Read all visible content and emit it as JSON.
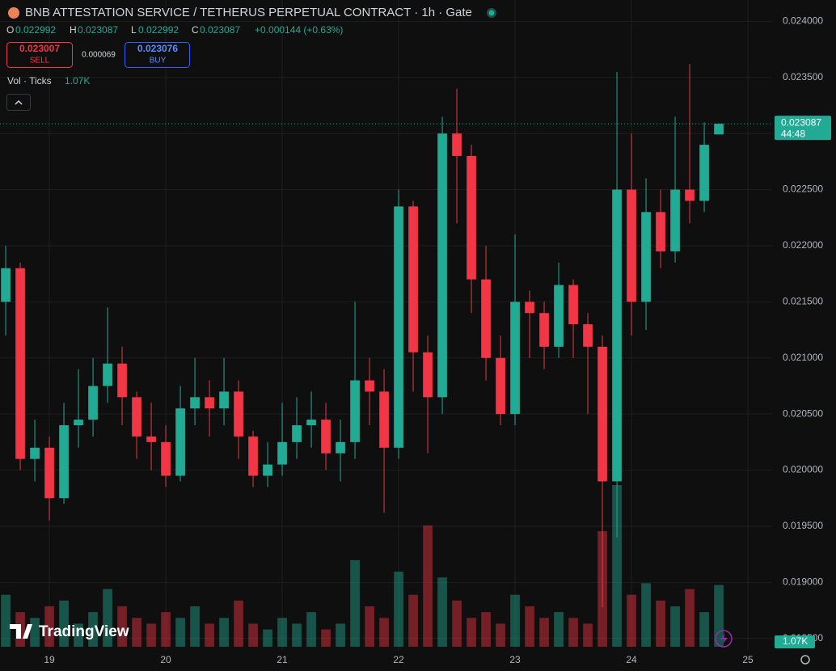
{
  "header": {
    "symbol": "BNB ATTESTATION SERVICE / TETHERUS PERPETUAL CONTRACT · 1h · Gate",
    "o_label": "O",
    "o": 0.022992,
    "h_label": "H",
    "h": 0.023087,
    "l_label": "L",
    "l": 0.022992,
    "c_label": "C",
    "c": 0.023087,
    "change": "+0.000144 (+0.63%)",
    "sell": 0.023007,
    "sell_label": "SELL",
    "spread": 6.9e-05,
    "buy": 0.023076,
    "buy_label": "BUY",
    "indicator": "Vol · Ticks",
    "countdown": "44:48",
    "brand": "TradingView"
  },
  "chart_data": {
    "type": "candlestick",
    "x": [
      18.625,
      18.75,
      18.875,
      19,
      19.125,
      19.25,
      19.375,
      19.5,
      19.625,
      19.75,
      19.875,
      20,
      20.125,
      20.25,
      20.375,
      20.5,
      20.625,
      20.75,
      20.875,
      21,
      21.125,
      21.25,
      21.375,
      21.5,
      21.625,
      21.75,
      21.875,
      22,
      22.125,
      22.25,
      22.375,
      22.5,
      22.625,
      22.75,
      22.875,
      23,
      23.125,
      23.25,
      23.375,
      23.5,
      23.625,
      23.75,
      23.875,
      24,
      24.125,
      24.25,
      24.375,
      24.5,
      24.625,
      24.75
    ],
    "open": [
      0.0215,
      0.0218,
      0.0201,
      0.0202,
      0.01975,
      0.0204,
      0.02045,
      0.02075,
      0.02095,
      0.02065,
      0.0203,
      0.02025,
      0.01995,
      0.02055,
      0.02065,
      0.02055,
      0.0207,
      0.0203,
      0.01995,
      0.02005,
      0.02025,
      0.0204,
      0.02045,
      0.02015,
      0.02025,
      0.0208,
      0.0207,
      0.0202,
      0.02235,
      0.02105,
      0.02065,
      0.023,
      0.0228,
      0.0217,
      0.021,
      0.0205,
      0.0215,
      0.0214,
      0.0211,
      0.02165,
      0.0213,
      0.0211,
      0.0199,
      0.0225,
      0.0215,
      0.0223,
      0.02195,
      0.0225,
      0.0224,
      0.022992
    ],
    "high": [
      0.022,
      0.02185,
      0.02045,
      0.0203,
      0.0206,
      0.0209,
      0.021,
      0.02145,
      0.0211,
      0.0207,
      0.0206,
      0.0204,
      0.02075,
      0.021,
      0.0208,
      0.021,
      0.0208,
      0.02035,
      0.02025,
      0.0206,
      0.02065,
      0.0207,
      0.0206,
      0.02045,
      0.0215,
      0.021,
      0.0209,
      0.0225,
      0.0224,
      0.0212,
      0.02315,
      0.0234,
      0.0229,
      0.022,
      0.0212,
      0.0221,
      0.0216,
      0.0215,
      0.02185,
      0.0217,
      0.0214,
      0.0212,
      0.02355,
      0.023,
      0.0226,
      0.0225,
      0.02315,
      0.02362,
      0.0231,
      0.023087
    ],
    "low": [
      0.0212,
      0.02,
      0.0199,
      0.01955,
      0.0197,
      0.0202,
      0.0203,
      0.0206,
      0.0204,
      0.0201,
      0.02,
      0.01985,
      0.0199,
      0.0204,
      0.0203,
      0.0204,
      0.0201,
      0.01985,
      0.01985,
      0.01995,
      0.0201,
      0.0202,
      0.02,
      0.0199,
      0.0201,
      0.0204,
      0.01962,
      0.0201,
      0.0207,
      0.02015,
      0.0205,
      0.0222,
      0.0214,
      0.0208,
      0.0204,
      0.0204,
      0.021,
      0.0209,
      0.021,
      0.021,
      0.0205,
      0.01878,
      0.0194,
      0.0212,
      0.02125,
      0.0218,
      0.02185,
      0.0222,
      0.0223,
      0.022992
    ],
    "close": [
      0.0218,
      0.0201,
      0.0202,
      0.01975,
      0.0204,
      0.02045,
      0.02075,
      0.02095,
      0.02065,
      0.0203,
      0.02025,
      0.01995,
      0.02055,
      0.02065,
      0.02055,
      0.0207,
      0.0203,
      0.01995,
      0.02005,
      0.02025,
      0.0204,
      0.02045,
      0.02015,
      0.02025,
      0.0208,
      0.0207,
      0.0202,
      0.02235,
      0.02105,
      0.02065,
      0.023,
      0.0228,
      0.0217,
      0.021,
      0.0205,
      0.0215,
      0.0214,
      0.0211,
      0.02165,
      0.0213,
      0.0211,
      0.0199,
      0.0225,
      0.0215,
      0.0223,
      0.02195,
      0.0225,
      0.0224,
      0.0229,
      0.023087
    ],
    "volume": [
      900,
      600,
      500,
      700,
      800,
      400,
      600,
      1000,
      700,
      500,
      400,
      600,
      500,
      700,
      400,
      500,
      800,
      400,
      300,
      500,
      400,
      600,
      300,
      400,
      1500,
      700,
      500,
      1300,
      900,
      2100,
      1200,
      800,
      500,
      600,
      400,
      900,
      700,
      500,
      600,
      500,
      400,
      2000,
      2800,
      900,
      1100,
      800,
      700,
      1000,
      600,
      1070
    ],
    "volume_label": "1.07K",
    "up_color": "#22ab94",
    "down_color": "#f23645",
    "xlim": [
      18.576,
      25.208
    ],
    "xticks": [
      19,
      20,
      21,
      22,
      23,
      24,
      25
    ],
    "ylim": [
      0.01839,
      0.02419
    ],
    "yticks": [
      {
        "value": 0.0185,
        "label": "0.018500"
      },
      {
        "value": 0.019,
        "label": "0.019000"
      },
      {
        "value": 0.0195,
        "label": "0.019500"
      },
      {
        "value": 0.02,
        "label": "0.020000"
      },
      {
        "value": 0.0205,
        "label": "0.020500"
      },
      {
        "value": 0.021,
        "label": "0.021000"
      },
      {
        "value": 0.0215,
        "label": "0.021500"
      },
      {
        "value": 0.022,
        "label": "0.022000"
      },
      {
        "value": 0.0225,
        "label": "0.022500"
      },
      {
        "value": 0.023,
        "label": "0.023000"
      },
      {
        "value": 0.0235,
        "label": "0.023500"
      },
      {
        "value": 0.024,
        "label": "0.024000"
      }
    ],
    "grid": true
  }
}
